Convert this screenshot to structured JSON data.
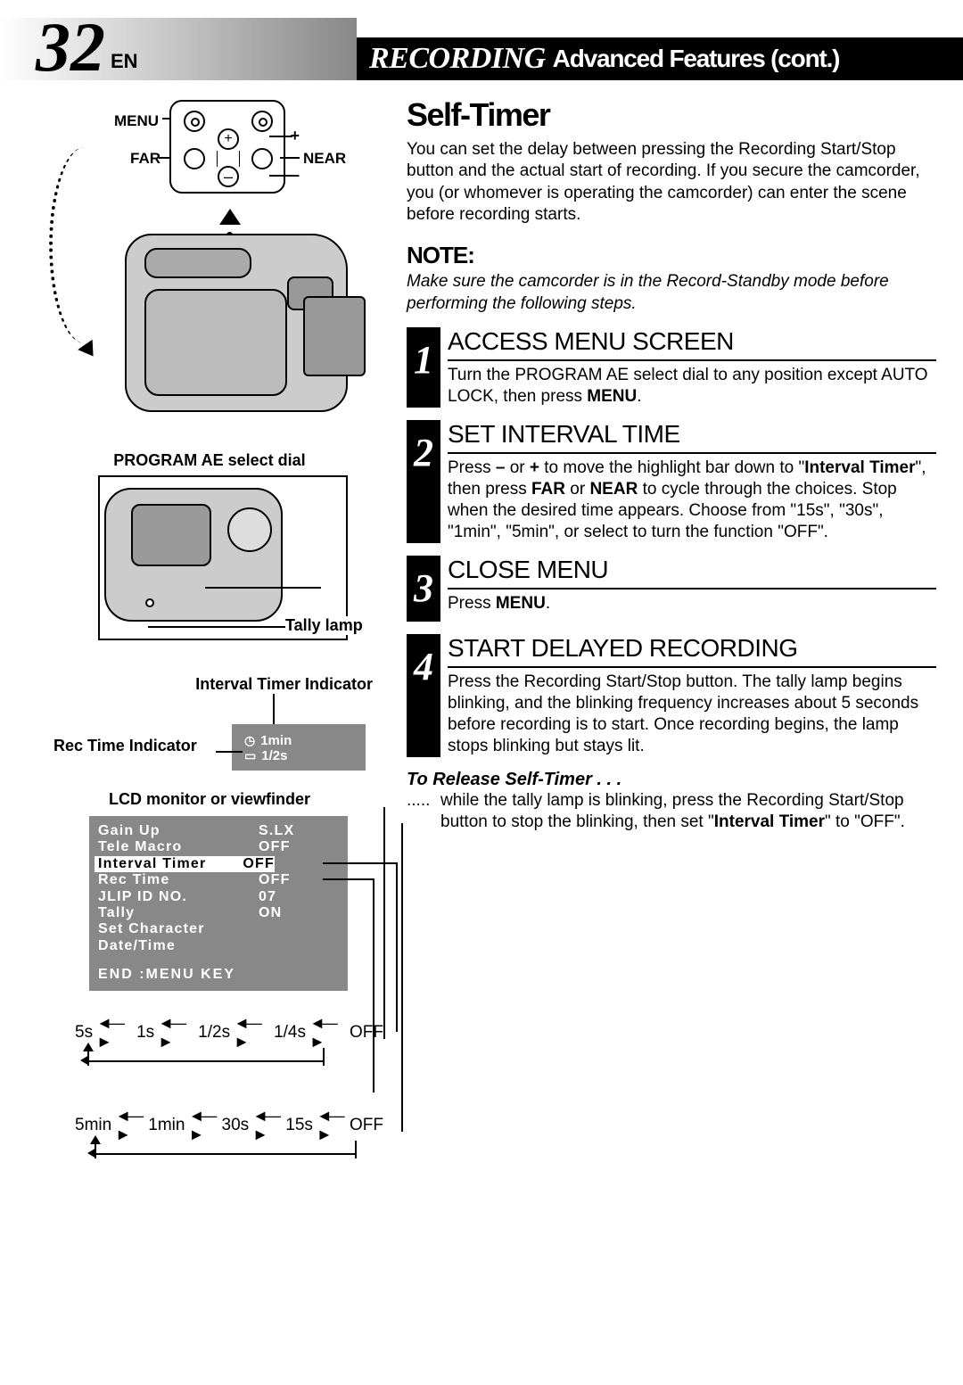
{
  "header": {
    "page_number": "32",
    "lang": "EN",
    "title_main": "RECORDING",
    "title_sub": "Advanced Features (cont.)"
  },
  "colors": {
    "header_bg": "#000000",
    "header_fg": "#ffffff",
    "diagram_gray": "#cccccc",
    "lcd_bg": "#888888",
    "text": "#000000"
  },
  "left": {
    "remote": {
      "menu": "MENU",
      "far": "FAR",
      "near": "NEAR",
      "plus": "+",
      "minus": "–"
    },
    "prog_ae_label": "PROGRAM AE select dial",
    "tally_label": "Tally lamp",
    "iti_label": "Interval Timer Indicator",
    "rti_label": "Rec Time Indicator",
    "lcd_small": {
      "line1": "1min",
      "line2": "1/2s"
    },
    "lcd_label": "LCD monitor or viewfinder",
    "menu": {
      "rows": [
        {
          "k": "Gain Up",
          "v": "S.LX"
        },
        {
          "k": "Tele Macro",
          "v": "OFF"
        },
        {
          "k": "Interval Timer",
          "v": "OFF",
          "hl": true
        },
        {
          "k": "Rec Time",
          "v": "OFF"
        },
        {
          "k": "JLIP ID NO.",
          "v": "07"
        },
        {
          "k": "Tally",
          "v": "ON"
        },
        {
          "k": "Set Character",
          "v": ""
        },
        {
          "k": "Date/Time",
          "v": ""
        }
      ],
      "end": "END :MENU KEY"
    },
    "cycle1": [
      "5s",
      "1s",
      "1/2s",
      "1/4s",
      "OFF"
    ],
    "cycle2": [
      "5min",
      "1min",
      "30s",
      "15s",
      "OFF"
    ]
  },
  "right": {
    "section_title": "Self-Timer",
    "intro": "You can set the delay between pressing the Recording Start/Stop button and the actual start of recording. If you secure the camcorder, you (or whomever is operating the camcorder) can enter the scene before recording starts.",
    "note_h": "NOTE:",
    "note_body": "Make sure the camcorder is in the Record-Standby mode before performing the following steps.",
    "steps": [
      {
        "num": "1",
        "h": "ACCESS MENU SCREEN",
        "body_html": "Turn the PROGRAM AE select dial to any position except AUTO LOCK, then press <b>MENU</b>."
      },
      {
        "num": "2",
        "h": "SET INTERVAL TIME",
        "body_html": "Press <b>–</b> or <b>+</b> to move the highlight bar down to \"<b>Interval Timer</b>\", then press <b>FAR</b> or <b>NEAR</b> to cycle through the choices. Stop when the desired time appears. Choose from \"15s\", \"30s\", \"1min\", \"5min\", or select to turn the function \"OFF\"."
      },
      {
        "num": "3",
        "h": "CLOSE MENU",
        "body_html": "Press <b>MENU</b>."
      },
      {
        "num": "4",
        "h": "START DELAYED RECORDING",
        "body_html": "Press the Recording Start/Stop button. The tally lamp begins blinking, and the blinking frequency increases about 5 seconds before recording is to start. Once recording begins, the lamp stops blinking but stays lit."
      }
    ],
    "release_h": "To Release Self-Timer . . .",
    "release_body_html": "while the tally lamp is blinking, press the Recording Start/Stop button to stop the blinking, then set \"<b>Interval Timer</b>\" to \"OFF\"."
  }
}
